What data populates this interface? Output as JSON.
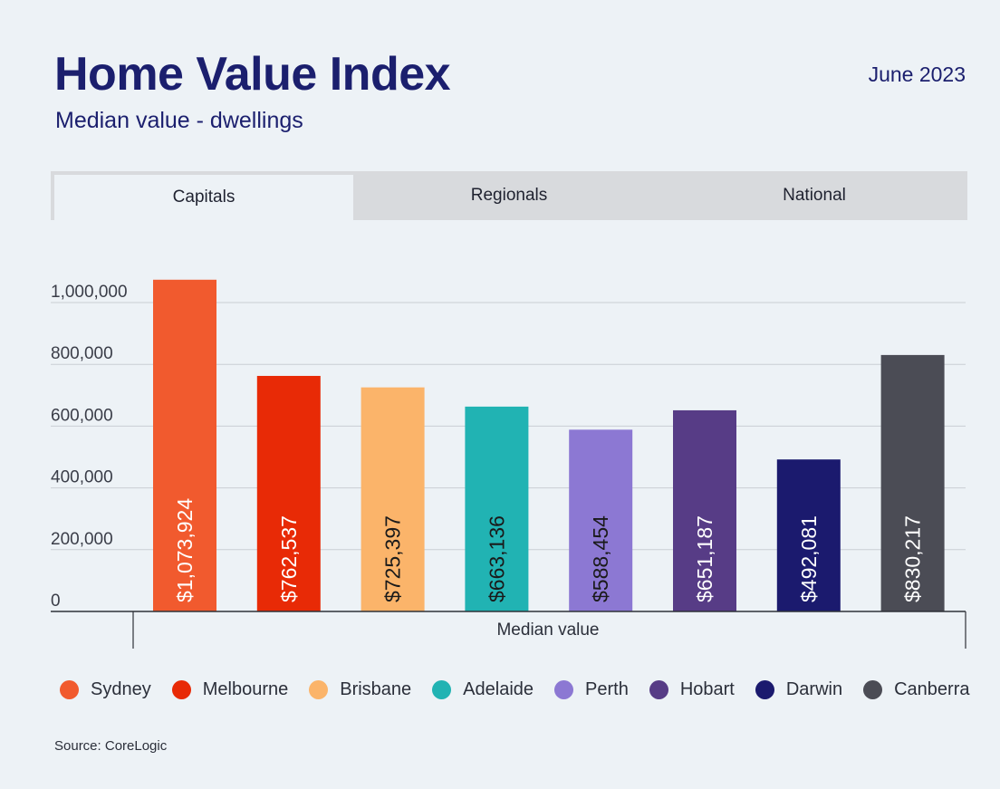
{
  "header": {
    "title": "Home Value Index",
    "subtitle": "Median value - dwellings",
    "date": "June 2023"
  },
  "tabs": [
    "Capitals",
    "Regionals",
    "National"
  ],
  "source": "Source: CoreLogic",
  "chart_data": {
    "type": "bar",
    "title": "Home Value Index",
    "xlabel": "Median value",
    "ylabel": "",
    "ylim": [
      0,
      1000000
    ],
    "yticks": [
      {
        "value": 0,
        "label": "0"
      },
      {
        "value": 200000,
        "label": "200,000"
      },
      {
        "value": 400000,
        "label": "400,000"
      },
      {
        "value": 600000,
        "label": "600,000"
      },
      {
        "value": 800000,
        "label": "800,000"
      },
      {
        "value": 1000000,
        "label": "1,000,000"
      }
    ],
    "grid": true,
    "legend_position": "bottom",
    "categories": [
      "Sydney",
      "Melbourne",
      "Brisbane",
      "Adelaide",
      "Perth",
      "Hobart",
      "Darwin",
      "Canberra"
    ],
    "values": [
      1073924,
      762537,
      725397,
      663136,
      588454,
      651187,
      492081,
      830217
    ],
    "data_labels": [
      "$1,073,924",
      "$762,537",
      "$725,397",
      "$663,136",
      "$588,454",
      "$651,187",
      "$492,081",
      "$830,217"
    ],
    "colors": [
      "#f15a2e",
      "#e82a06",
      "#fbb46a",
      "#21b3b3",
      "#8c78d3",
      "#573c86",
      "#1b1a6e",
      "#4b4c55"
    ],
    "label_colors": [
      "#ffffff",
      "#ffffff",
      "#1a1a1a",
      "#1a1a1a",
      "#1a1a1a",
      "#ffffff",
      "#ffffff",
      "#ffffff"
    ]
  }
}
